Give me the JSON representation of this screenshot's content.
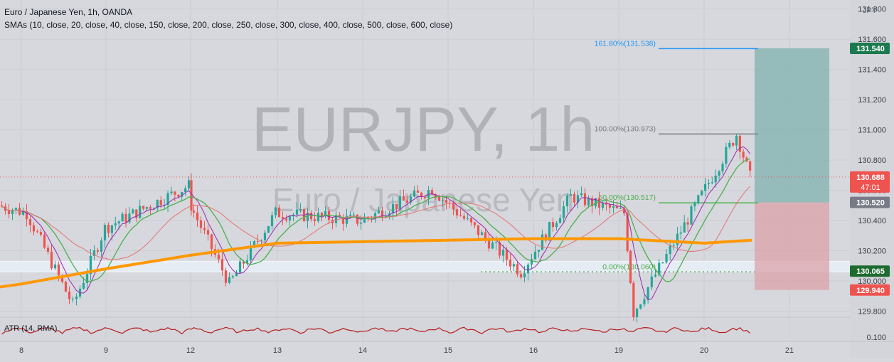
{
  "header": {
    "title": "Euro / Japanese Yen, 1h, OANDA",
    "indicators": "SMAs (10, close, 20, close, 40, close, 150, close, 200, close, 250, close, 300, close, 400, close, 500, close, 600, close)",
    "currency": "JPY"
  },
  "watermark": {
    "symbol": "EURJPY, 1h",
    "name": "Euro / Japanese Yen"
  },
  "atr_label": "ATR (14, RMA)",
  "colors": {
    "up": "#26a69a",
    "down": "#ef5350",
    "fib_blue": "#2196f3",
    "fib_grey": "#787b86",
    "fib_green": "#4caf50",
    "sma_fast": "#9c27b0",
    "sma_mid": "#4caf50",
    "sma_slow": "#ff9800",
    "atr": "#b71c1c",
    "profit_zone": "#7fb2ad",
    "loss_zone": "#dc9ea5"
  },
  "chart_data": {
    "type": "candlestick",
    "symbol": "EURJPY",
    "timeframe": "1h",
    "ylim": [
      129.76,
      131.86
    ],
    "y_ticks": [
      "131.800",
      "131.600",
      "131.400",
      "131.200",
      "131.000",
      "130.800",
      "130.600",
      "130.400",
      "130.200",
      "130.000",
      "129.800"
    ],
    "x_ticks": [
      "8",
      "9",
      "12",
      "13",
      "14",
      "15",
      "16",
      "19",
      "20",
      "21"
    ],
    "atr_tick": "0.100",
    "price_labels": [
      {
        "text": "131.540",
        "value": 131.54,
        "kind": "target"
      },
      {
        "text": "130.688",
        "sub": "47:01",
        "value": 130.688,
        "kind": "last"
      },
      {
        "text": "130.520",
        "value": 130.52,
        "kind": "entry"
      },
      {
        "text": "130.065",
        "value": 130.065,
        "kind": "support"
      },
      {
        "text": "129.940",
        "value": 129.94,
        "kind": "stop"
      }
    ],
    "fibonacci": [
      {
        "label": "161.80%(131.538)",
        "value": 131.538
      },
      {
        "label": "100.00%(130.973)",
        "value": 130.973
      },
      {
        "label": "50.00%(130.517)",
        "value": 130.517
      },
      {
        "label": "0.00%(130.060)",
        "value": 130.06
      }
    ],
    "position": {
      "entry": 130.52,
      "target": 131.54,
      "stop": 129.94
    },
    "support_zone": [
      130.06,
      130.13
    ],
    "last_price": 130.688,
    "key_points": [
      {
        "day": "8",
        "price": 130.5
      },
      {
        "day": "8",
        "price": 129.84
      },
      {
        "day": "9",
        "price": 130.35
      },
      {
        "day": "12",
        "price": 130.63
      },
      {
        "day": "12",
        "price": 129.98
      },
      {
        "day": "13",
        "price": 130.45
      },
      {
        "day": "14",
        "price": 130.4
      },
      {
        "day": "15",
        "price": 130.61
      },
      {
        "day": "16",
        "price": 130.06
      },
      {
        "day": "16",
        "price": 130.56
      },
      {
        "day": "19",
        "price": 129.79
      },
      {
        "day": "19",
        "price": 130.25
      },
      {
        "day": "20",
        "price": 130.97
      },
      {
        "day": "20",
        "price": 130.688
      }
    ],
    "sma_slow_points": [
      {
        "day": "8",
        "price": 129.98
      },
      {
        "day": "9",
        "price": 130.08
      },
      {
        "day": "12",
        "price": 130.17
      },
      {
        "day": "13",
        "price": 130.25
      },
      {
        "day": "14",
        "price": 130.26
      },
      {
        "day": "15",
        "price": 130.27
      },
      {
        "day": "16",
        "price": 130.28
      },
      {
        "day": "19",
        "price": 130.28
      },
      {
        "day": "20",
        "price": 130.25
      }
    ]
  }
}
